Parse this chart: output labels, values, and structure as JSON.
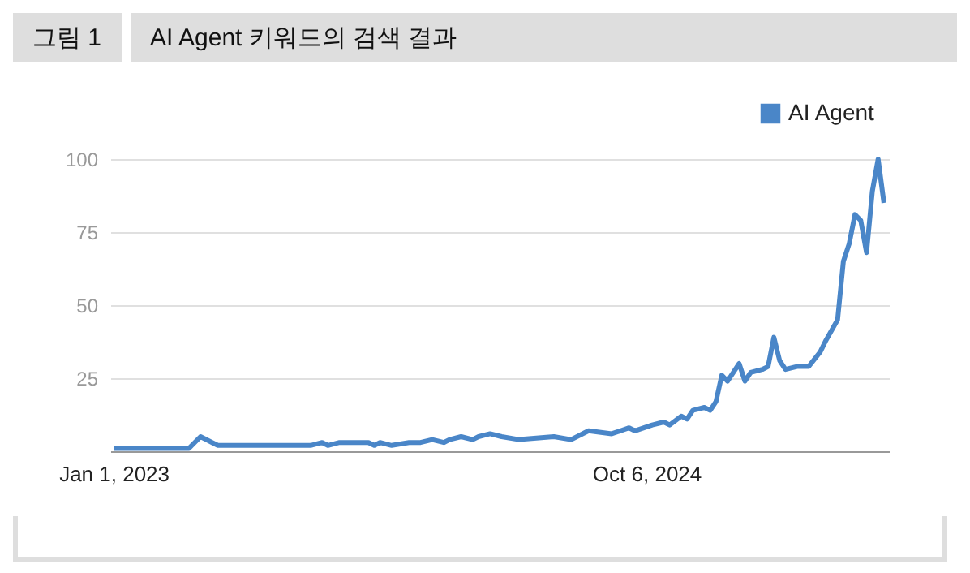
{
  "chart_data": {
    "type": "line",
    "title": "AI Agent 키워드의 검색 결과",
    "annotations": [
      "그림 1"
    ],
    "x": [
      "2023-01-01",
      "2023-04-02",
      "2023-04-16",
      "2023-04-30",
      "2023-05-07",
      "2023-08-27",
      "2023-09-10",
      "2023-09-17",
      "2023-10-01",
      "2023-11-05",
      "2023-11-12",
      "2023-11-19",
      "2023-12-03",
      "2023-12-24",
      "2024-01-07",
      "2024-01-21",
      "2024-02-04",
      "2024-02-11",
      "2024-02-25",
      "2024-03-10",
      "2024-03-17",
      "2024-03-31",
      "2024-04-14",
      "2024-05-05",
      "2024-06-16",
      "2024-07-07",
      "2024-07-28",
      "2024-08-25",
      "2024-09-15",
      "2024-09-22",
      "2024-10-13",
      "2024-10-27",
      "2024-11-03",
      "2024-11-17",
      "2024-11-24",
      "2024-12-01",
      "2024-12-15",
      "2024-12-22",
      "2024-12-29",
      "2025-01-05",
      "2025-01-12",
      "2025-01-26",
      "2025-02-02",
      "2025-02-09",
      "2025-02-23",
      "2025-03-02",
      "2025-03-09",
      "2025-03-16",
      "2025-03-23",
      "2025-04-06",
      "2025-04-20",
      "2025-05-04",
      "2025-05-11",
      "2025-05-25",
      "2025-06-01",
      "2025-06-08",
      "2025-06-15",
      "2025-06-22",
      "2025-06-29",
      "2025-07-06",
      "2025-07-13",
      "2025-07-20"
    ],
    "series": [
      {
        "name": "AI Agent",
        "color": "#4a86c8",
        "values": [
          1,
          1,
          5,
          3,
          2,
          2,
          3,
          2,
          3,
          3,
          2,
          3,
          2,
          3,
          3,
          4,
          3,
          4,
          5,
          4,
          5,
          6,
          5,
          4,
          5,
          4,
          7,
          6,
          8,
          7,
          9,
          10,
          9,
          12,
          11,
          14,
          15,
          14,
          17,
          26,
          24,
          30,
          24,
          27,
          28,
          29,
          39,
          31,
          28,
          29,
          29,
          34,
          38,
          45,
          65,
          71,
          81,
          79,
          68,
          89,
          100,
          85
        ]
      }
    ],
    "xlim": [
      "2022-12-28",
      "2025-07-26"
    ],
    "xticks": [
      {
        "value": "2023-01-01",
        "label": "Jan 1, 2023"
      },
      {
        "value": "2024-10-06",
        "label": "Oct 6, 2024"
      }
    ],
    "ylim": [
      0,
      100
    ],
    "yticks": [
      25,
      50,
      75,
      100
    ],
    "grid": "y",
    "legend": "top right",
    "line_style": "solid",
    "marker": "none"
  }
}
